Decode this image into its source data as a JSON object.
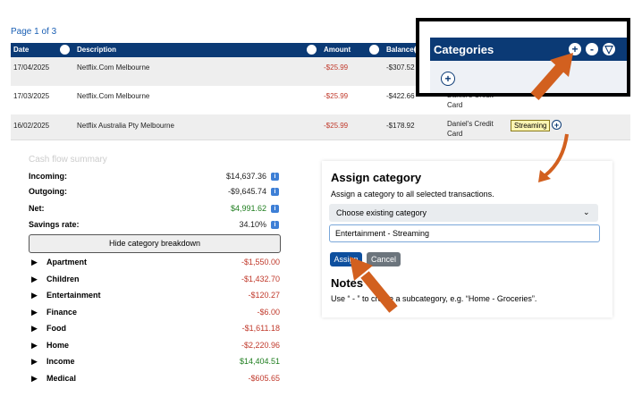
{
  "pager": "Page 1 of 3",
  "table": {
    "columns": [
      "Date",
      "Description",
      "Amount",
      "Balance"
    ],
    "rows": [
      {
        "date": "17/04/2025",
        "description": "Netflix.Com Melbourne",
        "amount": "-$25.99",
        "balance": "-$307.52"
      },
      {
        "date": "17/03/2025",
        "description": "Netflix.Com Melbourne",
        "amount": "-$25.99",
        "balance": "-$422.66",
        "account": "Daniel's Credit Card"
      },
      {
        "date": "16/02/2025",
        "description": "Netflix Australia Pty Melbourne",
        "amount": "-$25.99",
        "balance": "-$178.92",
        "account": "Daniel's Credit Card",
        "category": "Streaming"
      }
    ]
  },
  "categories_panel": {
    "title": "Categories"
  },
  "summary": {
    "title": "Cash flow summary",
    "rows": [
      {
        "label": "Incoming:",
        "value": "$14,637.36",
        "color": "#222222"
      },
      {
        "label": "Outgoing:",
        "value": "-$9,645.74",
        "color": "#222222"
      },
      {
        "label": "Net:",
        "value": "$4,991.62",
        "color": "#1e7d1e"
      },
      {
        "label": "Savings rate:",
        "value": "34.10%",
        "color": "#222222"
      }
    ],
    "button": "Hide category breakdown",
    "categories": [
      {
        "name": "Apartment",
        "amount": "-$1,550.00"
      },
      {
        "name": "Children",
        "amount": "-$1,432.70"
      },
      {
        "name": "Entertainment",
        "amount": "-$120.27"
      },
      {
        "name": "Finance",
        "amount": "-$6.00"
      },
      {
        "name": "Food",
        "amount": "-$1,611.18"
      },
      {
        "name": "Home",
        "amount": "-$2,220.96"
      },
      {
        "name": "Income",
        "amount": "$14,404.51"
      },
      {
        "name": "Medical",
        "amount": "-$605.65"
      }
    ]
  },
  "assign": {
    "title": "Assign category",
    "description": "Assign a category to all selected transactions.",
    "select_placeholder": "Choose existing category",
    "input_value": "Entertainment - Streaming",
    "buttons": [
      "Assign",
      "Cancel"
    ],
    "notes_title": "Notes",
    "notes_text": "Use “ - ” to create a subcategory, e.g. “Home - Groceries”."
  }
}
